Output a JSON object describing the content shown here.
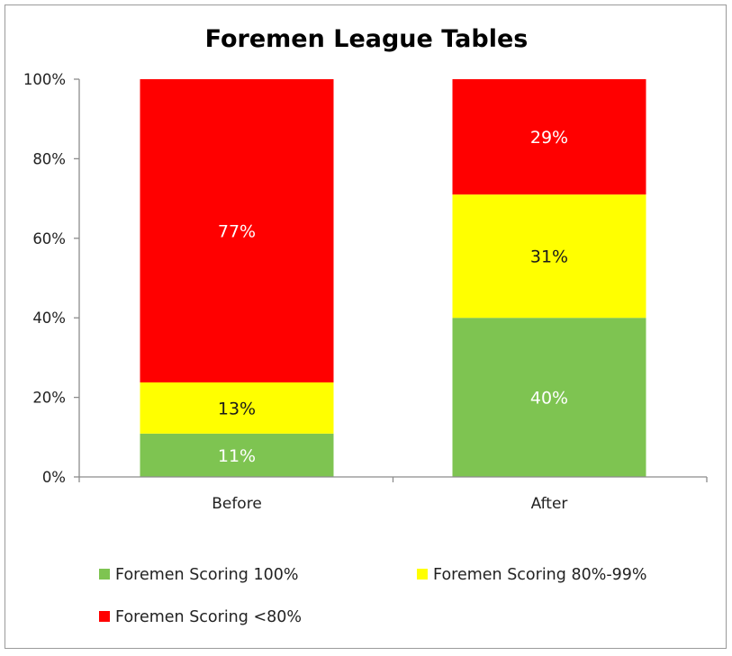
{
  "chart_data": {
    "type": "bar",
    "stacked": true,
    "title": "Foremen League Tables",
    "categories": [
      "Before",
      "After"
    ],
    "series": [
      {
        "name": "Foremen Scoring 100%",
        "values": [
          11,
          40
        ],
        "labels": [
          "11%",
          "40%"
        ],
        "color": "#7ec451",
        "label_color": "#ffffff"
      },
      {
        "name": "Foremen Scoring 80%-99%",
        "values": [
          13,
          31
        ],
        "labels": [
          "13%",
          "31%"
        ],
        "color": "#ffff00",
        "label_color": "#1a1a1a"
      },
      {
        "name": "Foremen Scoring <80%",
        "values": [
          77,
          29
        ],
        "labels": [
          "77%",
          "29%"
        ],
        "color": "#ff0000",
        "label_color": "#ffffff"
      }
    ],
    "y_ticks": [
      "0%",
      "20%",
      "40%",
      "60%",
      "80%",
      "100%"
    ],
    "ylim": [
      0,
      100
    ],
    "grid": false,
    "legend_position": "bottom"
  }
}
